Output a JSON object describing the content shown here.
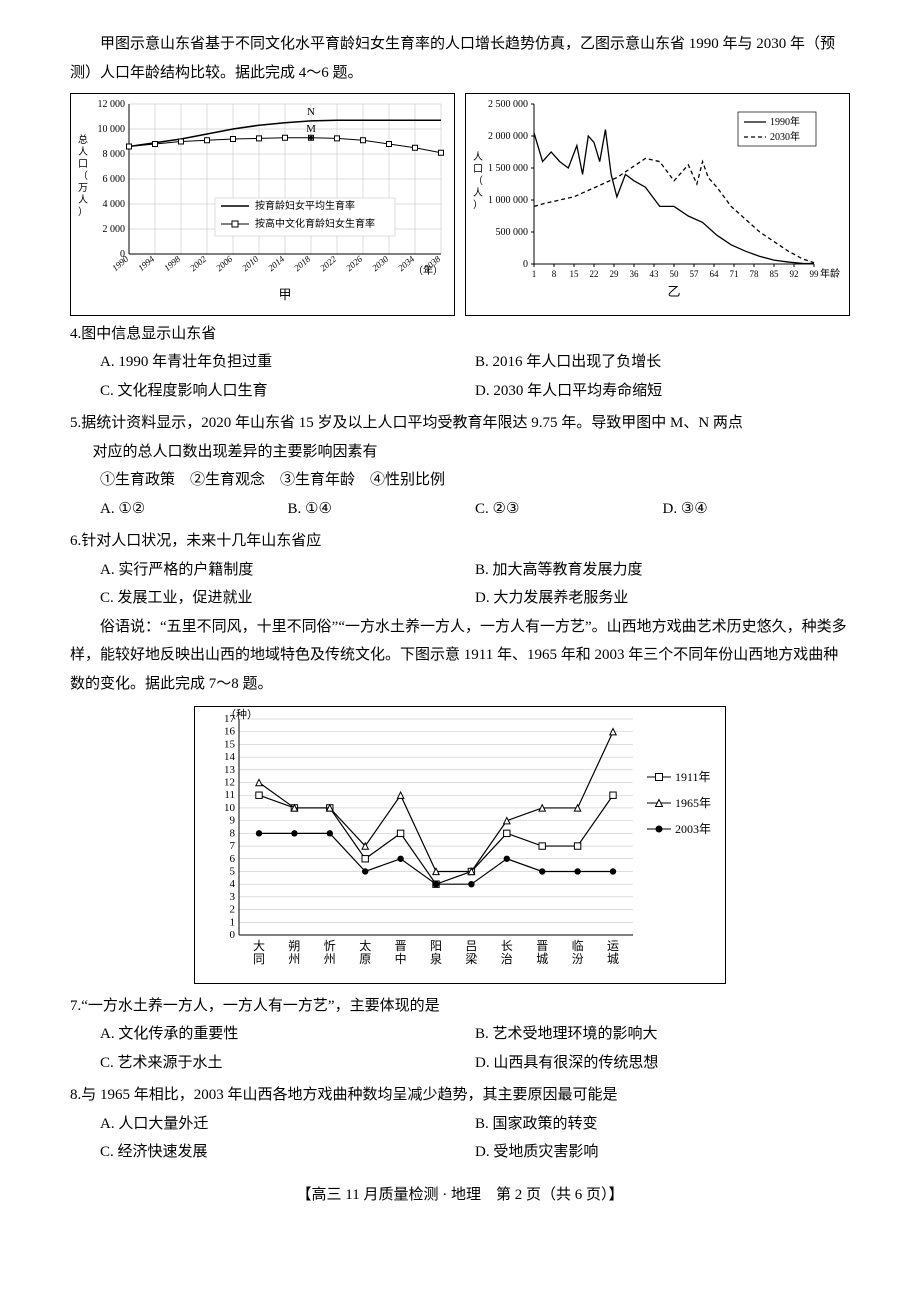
{
  "colors": {
    "text": "#000000",
    "axis": "#000000",
    "grid": "#bdbdbd",
    "bg": "#ffffff"
  },
  "intro1": "甲图示意山东省基于不同文化水平育龄妇女生育率的人口增长趋势仿真，乙图示意山东省 1990 年与 2030 年（预测）人口年龄结构比较。据此完成 4～6 题。",
  "chart_jia": {
    "type": "line",
    "label_under": "甲",
    "ylabel": "总人口（万人）",
    "xlabel_suffix": "（年）",
    "ylim": [
      0,
      12000
    ],
    "ytick": [
      0,
      2000,
      4000,
      6000,
      8000,
      10000,
      12000
    ],
    "ytick_labels": [
      "0",
      "2 000",
      "4 000",
      "6 000",
      "8 000",
      "10 000",
      "12 000"
    ],
    "x_categories": [
      "1990",
      "1994",
      "1998",
      "2002",
      "2006",
      "2010",
      "2014",
      "2018",
      "2022",
      "2026",
      "2030",
      "2034",
      "2038"
    ],
    "series": [
      {
        "name": "按育龄妇女平均生育率",
        "marker": "none",
        "dash": "solid",
        "color": "#000000",
        "values": [
          8600,
          8900,
          9200,
          9600,
          10000,
          10300,
          10500,
          10650,
          10700,
          10700,
          10700,
          10700,
          10700
        ]
      },
      {
        "name": "按高中文化育龄妇女生育率",
        "marker": "square-open",
        "dash": "solid",
        "color": "#000000",
        "values": [
          8600,
          8800,
          9000,
          9100,
          9200,
          9250,
          9300,
          9300,
          9250,
          9100,
          8800,
          8500,
          8100
        ]
      }
    ],
    "annotations": [
      {
        "label": "N",
        "x_index": 7,
        "y": 10650,
        "dy": -6
      },
      {
        "label": "M",
        "x_index": 7,
        "y": 9300,
        "dy": -6,
        "dot": true
      }
    ],
    "grid": true,
    "font_axis": 10
  },
  "chart_yi": {
    "type": "line",
    "label_under": "乙",
    "ylabel": "人口（人）",
    "xlabel_suffix": "年龄",
    "ylim": [
      0,
      2500000
    ],
    "ytick": [
      0,
      500000,
      1000000,
      1500000,
      2000000,
      2500000
    ],
    "ytick_labels": [
      "0",
      "500 000",
      "1 000 000",
      "1 500 000",
      "2 000 000",
      "2 500 000"
    ],
    "x_ticks": [
      1,
      8,
      15,
      22,
      29,
      36,
      43,
      50,
      57,
      64,
      71,
      78,
      85,
      92,
      99
    ],
    "series": [
      {
        "name": "1990年",
        "dash": "solid",
        "color": "#000000",
        "xs": [
          1,
          4,
          7,
          10,
          13,
          16,
          18,
          20,
          22,
          24,
          26,
          28,
          30,
          33,
          36,
          40,
          45,
          50,
          55,
          60,
          65,
          70,
          75,
          80,
          85,
          90,
          95,
          99
        ],
        "ys": [
          2050000,
          1600000,
          1750000,
          1600000,
          1500000,
          1850000,
          1400000,
          2000000,
          1900000,
          1600000,
          2100000,
          1400000,
          1050000,
          1400000,
          1300000,
          1200000,
          900000,
          900000,
          750000,
          650000,
          450000,
          300000,
          200000,
          120000,
          60000,
          30000,
          10000,
          5000
        ]
      },
      {
        "name": "2030年",
        "dash": "dash",
        "color": "#000000",
        "xs": [
          1,
          5,
          10,
          15,
          20,
          25,
          30,
          35,
          40,
          45,
          50,
          55,
          58,
          60,
          62,
          65,
          70,
          75,
          80,
          85,
          90,
          95,
          99
        ],
        "ys": [
          900000,
          950000,
          1000000,
          1050000,
          1150000,
          1250000,
          1350000,
          1500000,
          1650000,
          1600000,
          1300000,
          1550000,
          1250000,
          1600000,
          1350000,
          1200000,
          900000,
          700000,
          500000,
          350000,
          200000,
          80000,
          20000
        ]
      }
    ],
    "font_axis": 10
  },
  "q4": {
    "stem": "4.图中信息显示山东省",
    "opts": {
      "A": "A. 1990 年青壮年负担过重",
      "B": "B. 2016 年人口出现了负增长",
      "C": "C. 文化程度影响人口生育",
      "D": "D. 2030 年人口平均寿命缩短"
    }
  },
  "q5": {
    "stem1": "5.据统计资料显示，2020 年山东省 15 岁及以上人口平均受教育年限达 9.75 年。导致甲图中 M、N 两点",
    "stem2": "对应的总人口数出现差异的主要影响因素有",
    "statements": "①生育政策　②生育观念　③生育年龄　④性别比例",
    "opts": {
      "A": "A. ①②",
      "B": "B. ①④",
      "C": "C. ②③",
      "D": "D. ③④"
    }
  },
  "q6": {
    "stem": "6.针对人口状况，未来十几年山东省应",
    "opts": {
      "A": "A. 实行严格的户籍制度",
      "B": "B. 加大高等教育发展力度",
      "C": "C. 发展工业，促进就业",
      "D": "D. 大力发展养老服务业"
    }
  },
  "intro2": "　　俗语说：“五里不同风，十里不同俗”“一方水土养一方人，一方人有一方艺”。山西地方戏曲艺术历史悠久，种类多样，能较好地反映出山西的地域特色及传统文化。下图示意 1911 年、1965 年和 2003 年三个不同年份山西地方戏曲种数的变化。据此完成 7～8 题。",
  "chart_sx": {
    "type": "line",
    "ylabel": "（种）",
    "ylim": [
      0,
      17
    ],
    "ytick": [
      0,
      1,
      2,
      3,
      4,
      5,
      6,
      7,
      8,
      9,
      10,
      11,
      12,
      13,
      14,
      15,
      16,
      17
    ],
    "x_categories": [
      "大同",
      "朔州",
      "忻州",
      "太原",
      "晋中",
      "阳泉",
      "吕梁",
      "长治",
      "晋城",
      "临汾",
      "运城"
    ],
    "series": [
      {
        "name": "1911年",
        "marker": "square-open",
        "color": "#000000",
        "values": [
          11,
          10,
          10,
          6,
          8,
          4,
          5,
          8,
          7,
          7,
          11
        ]
      },
      {
        "name": "1965年",
        "marker": "triangle-open",
        "color": "#000000",
        "values": [
          12,
          10,
          10,
          7,
          11,
          5,
          5,
          9,
          10,
          10,
          16
        ]
      },
      {
        "name": "2003年",
        "marker": "circle-filled",
        "color": "#000000",
        "values": [
          8,
          8,
          8,
          5,
          6,
          4,
          4,
          6,
          5,
          5,
          5
        ]
      }
    ],
    "grid": true,
    "font_axis": 11
  },
  "q7": {
    "stem": "7.“一方水土养一方人，一方人有一方艺”，主要体现的是",
    "opts": {
      "A": "A. 文化传承的重要性",
      "B": "B. 艺术受地理环境的影响大",
      "C": "C. 艺术来源于水土",
      "D": "D. 山西具有很深的传统思想"
    }
  },
  "q8": {
    "stem": "8.与 1965 年相比，2003 年山西各地方戏曲种数均呈减少趋势，其主要原因最可能是",
    "opts": {
      "A": "A. 人口大量外迁",
      "B": "B. 国家政策的转变",
      "C": "C. 经济快速发展",
      "D": "D. 受地质灾害影响"
    }
  },
  "footer": "【高三 11 月质量检测 · 地理　第 2 页（共 6 页）】"
}
